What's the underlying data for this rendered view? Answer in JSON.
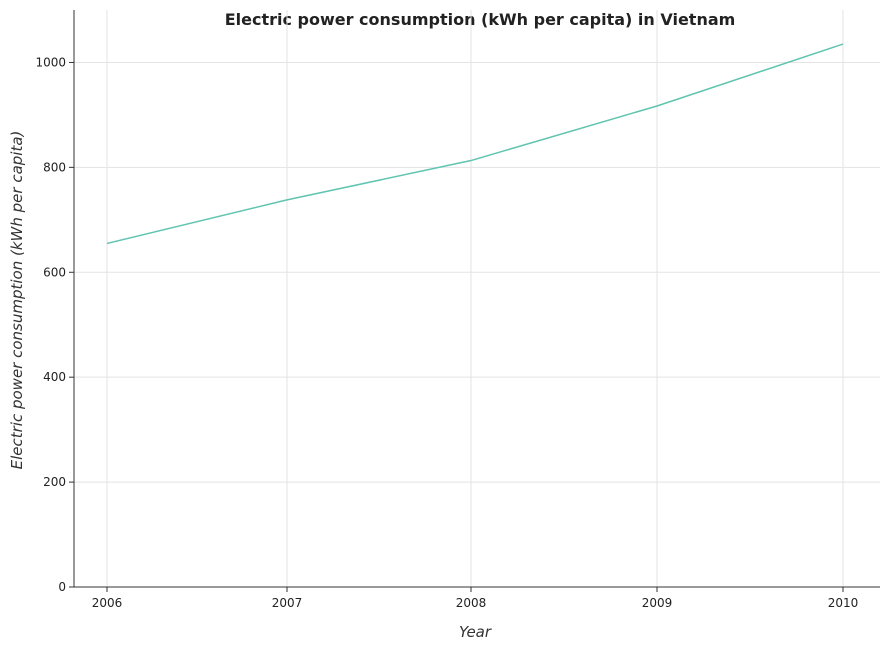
{
  "chart_data": {
    "type": "line",
    "title": "Electric power consumption (kWh per capita) in Vietnam",
    "xlabel": "Year",
    "ylabel": "Electric power consumption (kWh per capita)",
    "categories": [
      "2006",
      "2007",
      "2008",
      "2009",
      "2010"
    ],
    "series": [
      {
        "values": [
          655,
          738,
          813,
          917,
          1035
        ],
        "color": "#5fc4b0"
      }
    ],
    "ylim": [
      0,
      1100
    ],
    "yticks": [
      0,
      200,
      400,
      600,
      800,
      1000
    ],
    "grid": true,
    "legend": "none"
  }
}
